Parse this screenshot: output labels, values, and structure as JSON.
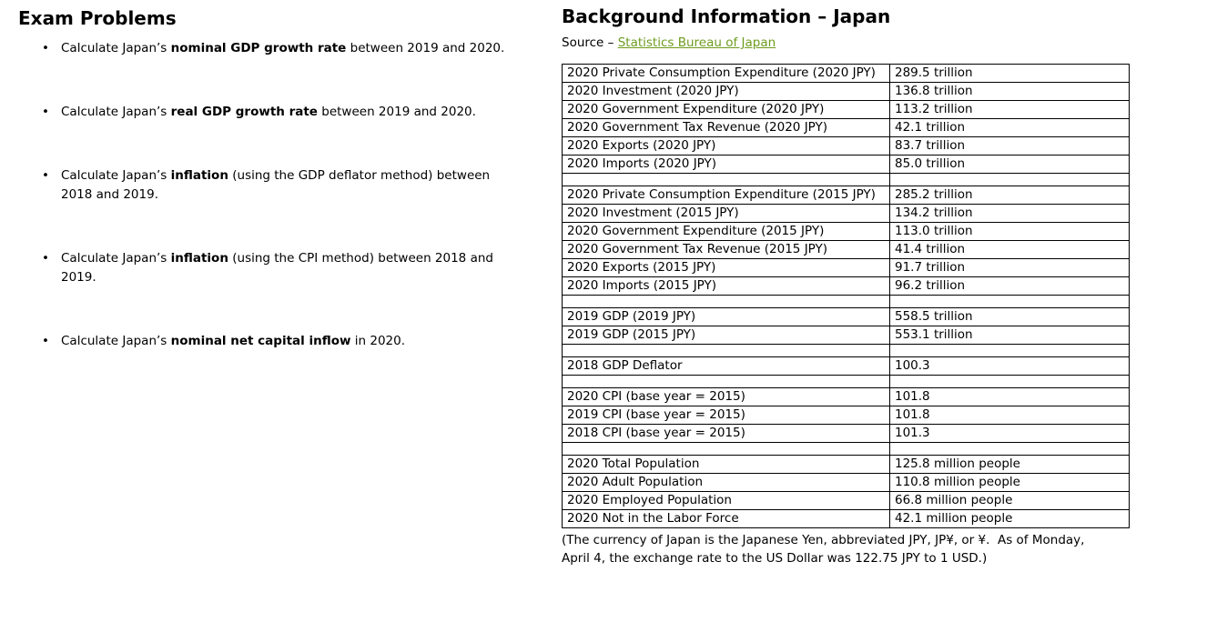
{
  "exam": {
    "title": "Exam Problems",
    "bullet_glyph": "•",
    "problems": [
      {
        "pre": "Calculate Japan’s ",
        "bold": "nominal GDP growth rate",
        "post": " between 2019 and 2020."
      },
      {
        "pre": "Calculate Japan’s ",
        "bold": "real GDP growth rate",
        "post": " between 2019 and 2020."
      },
      {
        "pre": "Calculate Japan’s ",
        "bold": "inflation",
        "post": " (using the GDP deflator method) between 2018 and 2019."
      },
      {
        "pre": "Calculate Japan’s ",
        "bold": "inflation",
        "post": " (using the CPI method) between 2018 and 2019."
      },
      {
        "pre": "Calculate Japan’s ",
        "bold": "nominal net capital inflow",
        "post": " in 2020."
      }
    ]
  },
  "background": {
    "title": "Background Information – Japan",
    "source_prefix": "Source – ",
    "source_link_text": "Statistics Bureau of Japan",
    "link_color": "#6e9c1f",
    "border_color": "#000000",
    "table": {
      "sections": [
        {
          "rows": [
            {
              "label": "2020 Private Consumption Expenditure (2020 JPY)",
              "value": "289.5 trillion"
            },
            {
              "label": "2020 Investment (2020 JPY)",
              "value": "136.8 trillion"
            },
            {
              "label": "2020 Government Expenditure (2020 JPY)",
              "value": "113.2 trillion"
            },
            {
              "label": "2020 Government Tax Revenue (2020 JPY)",
              "value": "42.1 trillion"
            },
            {
              "label": "2020 Exports (2020 JPY)",
              "value": "83.7 trillion"
            },
            {
              "label": "2020 Imports (2020 JPY)",
              "value": "85.0 trillion"
            }
          ]
        },
        {
          "rows": [
            {
              "label": "2020 Private Consumption Expenditure (2015 JPY)",
              "value": "285.2 trillion"
            },
            {
              "label": "2020 Investment (2015 JPY)",
              "value": "134.2 trillion"
            },
            {
              "label": "2020 Government Expenditure (2015 JPY)",
              "value": "113.0 trillion"
            },
            {
              "label": "2020 Government Tax Revenue (2015 JPY)",
              "value": "41.4 trillion"
            },
            {
              "label": "2020 Exports (2015 JPY)",
              "value": "91.7 trillion"
            },
            {
              "label": "2020 Imports (2015 JPY)",
              "value": "96.2 trillion"
            }
          ]
        },
        {
          "rows": [
            {
              "label": "2019 GDP (2019 JPY)",
              "value": "558.5 trillion"
            },
            {
              "label": "2019 GDP (2015 JPY)",
              "value": "553.1 trillion"
            }
          ]
        },
        {
          "rows": [
            {
              "label": "2018 GDP Deflator",
              "value": "100.3"
            }
          ]
        },
        {
          "rows": [
            {
              "label": "2020 CPI (base year = 2015)",
              "value": "101.8"
            },
            {
              "label": "2019 CPI (base year = 2015)",
              "value": "101.8"
            },
            {
              "label": "2018 CPI (base year = 2015)",
              "value": "101.3"
            }
          ]
        },
        {
          "rows": [
            {
              "label": "2020 Total Population",
              "value": "125.8 million people"
            },
            {
              "label": "2020 Adult Population",
              "value": "110.8 million people"
            },
            {
              "label": "2020 Employed Population",
              "value": "66.8 million people"
            },
            {
              "label": "2020 Not in the Labor Force",
              "value": "42.1 million people"
            }
          ]
        }
      ]
    },
    "footnote": "(The currency of Japan is the Japanese Yen, abbreviated JPY, JP¥, or ¥.  As of Monday, April 4, the exchange rate to the US Dollar was 122.75 JPY to 1 USD.)"
  }
}
